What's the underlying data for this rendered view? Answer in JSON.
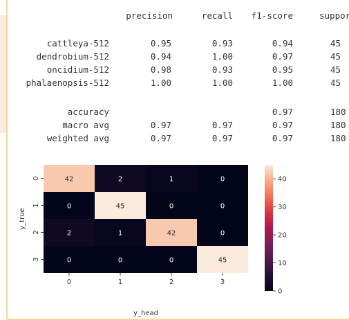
{
  "report": {
    "headers": [
      "precision",
      "recall",
      "f1-score",
      "support"
    ],
    "rows": [
      {
        "label": "cattleya-512",
        "precision": "0.95",
        "recall": "0.93",
        "f1": "0.94",
        "support": "45"
      },
      {
        "label": "dendrobium-512",
        "precision": "0.94",
        "recall": "1.00",
        "f1": "0.97",
        "support": "45"
      },
      {
        "label": "oncidium-512",
        "precision": "0.98",
        "recall": "0.93",
        "f1": "0.95",
        "support": "45"
      },
      {
        "label": "phalaenopsis-512",
        "precision": "1.00",
        "recall": "1.00",
        "f1": "1.00",
        "support": "45"
      }
    ],
    "summary": [
      {
        "label": "accuracy",
        "precision": "",
        "recall": "",
        "f1": "0.97",
        "support": "180"
      },
      {
        "label": "macro avg",
        "precision": "0.97",
        "recall": "0.97",
        "f1": "0.97",
        "support": "180"
      },
      {
        "label": "weighted avg",
        "precision": "0.97",
        "recall": "0.97",
        "f1": "0.97",
        "support": "180"
      }
    ]
  },
  "chart_data": {
    "type": "heatmap",
    "x_categories": [
      "0",
      "1",
      "2",
      "3"
    ],
    "y_categories": [
      "0",
      "1",
      "2",
      "3"
    ],
    "values": [
      [
        42,
        2,
        1,
        0
      ],
      [
        0,
        45,
        0,
        0
      ],
      [
        2,
        1,
        42,
        0
      ],
      [
        0,
        0,
        0,
        45
      ]
    ],
    "xlabel": "y_head",
    "ylabel": "y_true",
    "colorbar": {
      "min": 0,
      "max": 45,
      "ticks": [
        0,
        10,
        20,
        30,
        40
      ]
    },
    "colormap": "rocket",
    "text_colors": {
      "dark": "#262626",
      "light": "#ffffff"
    }
  }
}
